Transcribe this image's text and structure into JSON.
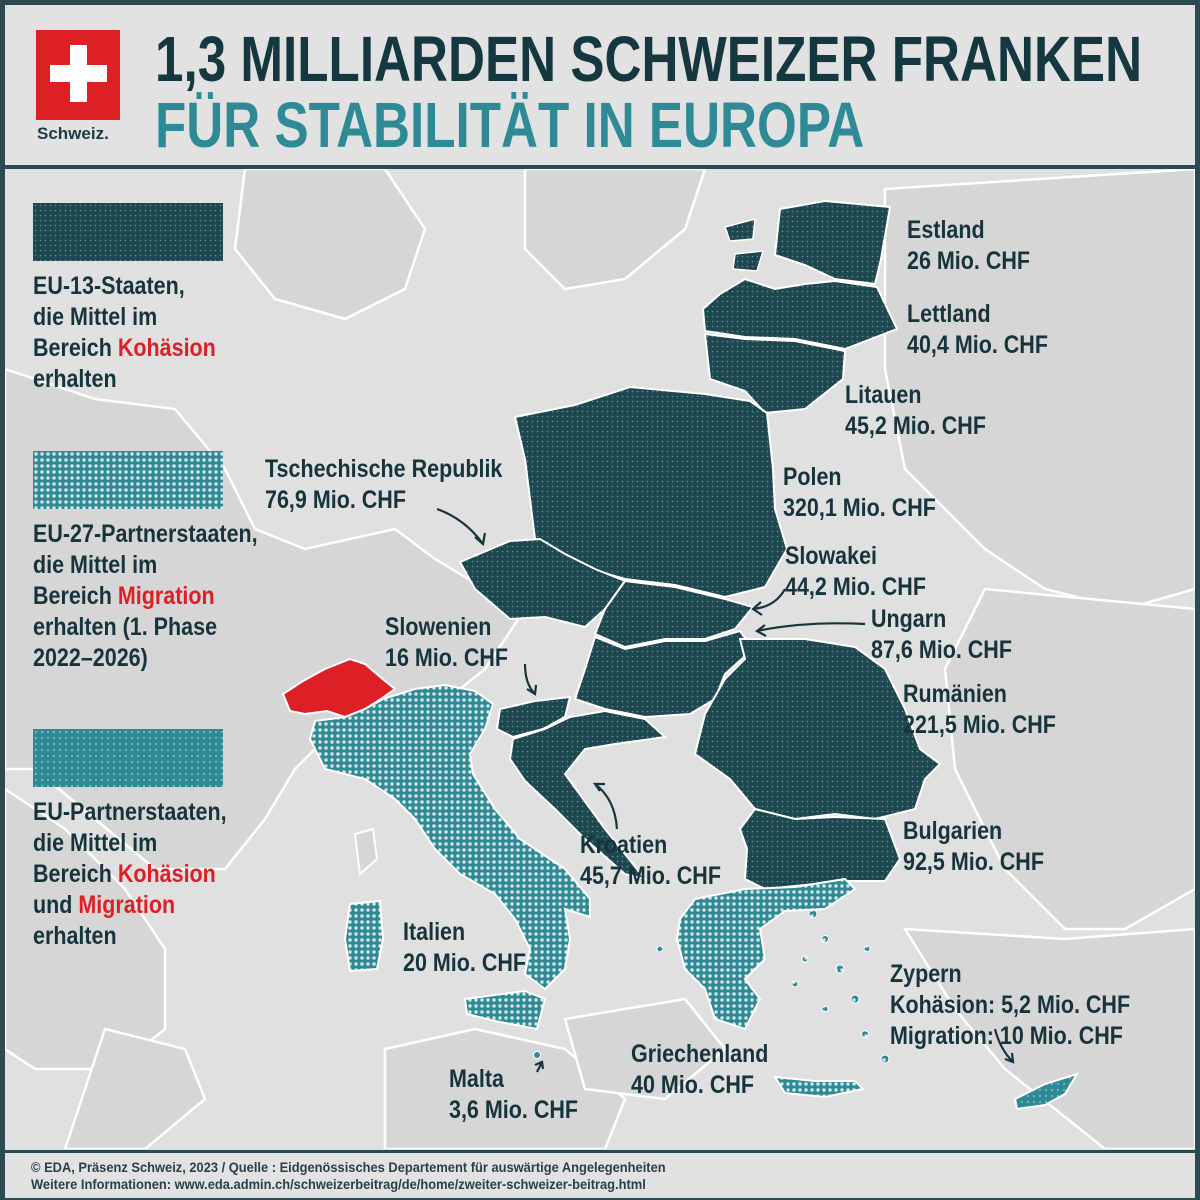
{
  "logo": {
    "text": "Schweiz."
  },
  "title": {
    "line1": "1,3 MILLIARDEN SCHWEIZER FRANKEN",
    "line2": "FÜR STABILITÄT IN EUROPA"
  },
  "colors": {
    "eu13": "#1d4850",
    "migration": "#2e8a95",
    "both": "#2e8a95",
    "switzerland": "#dd1f26",
    "land": "#d5d5d5",
    "sea": "#e0e0e0"
  },
  "legend": [
    {
      "lines": [
        "EU-13-Staaten,",
        "die Mittel im"
      ],
      "prefix": "Bereich ",
      "highlight": "Kohäsion",
      "tail": "erhalten"
    },
    {
      "lines": [
        "EU-27-Partnerstaaten,",
        "die Mittel im"
      ],
      "prefix": "Bereich ",
      "highlight": "Migration",
      "tail": "erhalten (1. Phase",
      "tail2": "2022–2026)"
    },
    {
      "lines": [
        "EU-Partnerstaaten,",
        "die Mittel im"
      ],
      "prefix": "Bereich ",
      "highlight": "Kohäsion",
      "line4pre": "und  ",
      "line4hl": "Migration",
      "tail": "erhalten"
    }
  ],
  "countries": {
    "estland": {
      "name": "Estland",
      "amount": "26 Mio. CHF"
    },
    "lettland": {
      "name": "Lettland",
      "amount": "40,4 Mio. CHF"
    },
    "litauen": {
      "name": "Litauen",
      "amount": "45,2 Mio. CHF"
    },
    "polen": {
      "name": "Polen",
      "amount": "320,1 Mio. CHF"
    },
    "tschechien": {
      "name": "Tschechische Republik",
      "amount": "76,9 Mio. CHF"
    },
    "slowakei": {
      "name": "Slowakei",
      "amount": "44,2 Mio. CHF"
    },
    "ungarn": {
      "name": "Ungarn",
      "amount": "87,6 Mio. CHF"
    },
    "slowenien": {
      "name": "Slowenien",
      "amount": "16 Mio. CHF"
    },
    "rumaenien": {
      "name": "Rumänien",
      "amount": "221,5 Mio. CHF"
    },
    "kroatien": {
      "name": "Kroatien",
      "amount": "45,7 Mio. CHF"
    },
    "bulgarien": {
      "name": "Bulgarien",
      "amount": "92,5 Mio. CHF"
    },
    "italien": {
      "name": "Italien",
      "amount": "20 Mio. CHF"
    },
    "zypern": {
      "name": "Zypern",
      "line2": "Kohäsion: 5,2 Mio. CHF",
      "line3": "Migration: 10 Mio. CHF"
    },
    "griechenland": {
      "name": "Griechenland",
      "amount": "40 Mio. CHF"
    },
    "malta": {
      "name": "Malta",
      "amount": "3,6 Mio. CHF"
    }
  },
  "footer": {
    "line1": "© EDA, Präsenz Schweiz, 2023 / Quelle : Eidgenössisches Departement für auswärtige Angelegenheiten",
    "line2": "Weitere Informationen: www.eda.admin.ch/schweizerbeitrag/de/home/zweiter-schweizer-beitrag.html"
  }
}
